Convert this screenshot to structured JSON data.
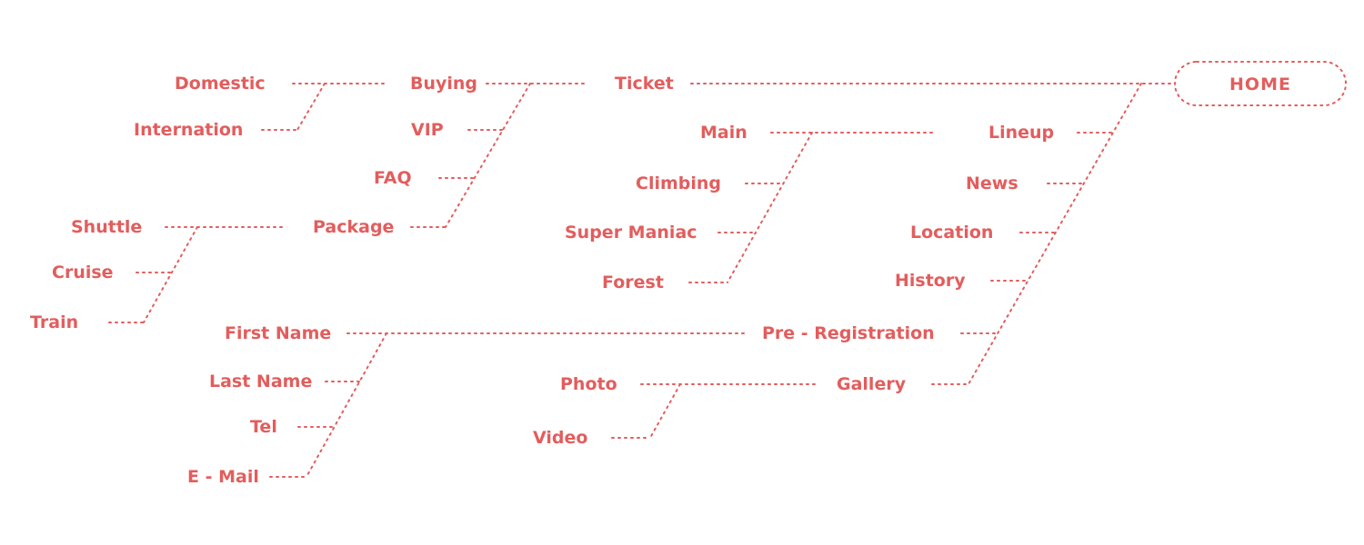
{
  "colors": {
    "accent": "#E35D5D",
    "background": "#FFFFFF"
  },
  "home": {
    "label": "HOME"
  },
  "nodes": {
    "ticket": "Ticket",
    "buying": "Buying",
    "vip": "VIP",
    "faq": "FAQ",
    "package": "Package",
    "domestic": "Domestic",
    "internation": "Internation",
    "shuttle": "Shuttle",
    "cruise": "Cruise",
    "train": "Train",
    "lineup": "Lineup",
    "news": "News",
    "location": "Location",
    "history": "History",
    "pre_registration": "Pre - Registration",
    "gallery": "Gallery",
    "main": "Main",
    "climbing": "Climbing",
    "super_maniac": "Super Maniac",
    "forest": "Forest",
    "first_name": "First Name",
    "last_name": "Last Name",
    "tel": "Tel",
    "email": "E - Mail",
    "photo": "Photo",
    "video": "Video"
  }
}
